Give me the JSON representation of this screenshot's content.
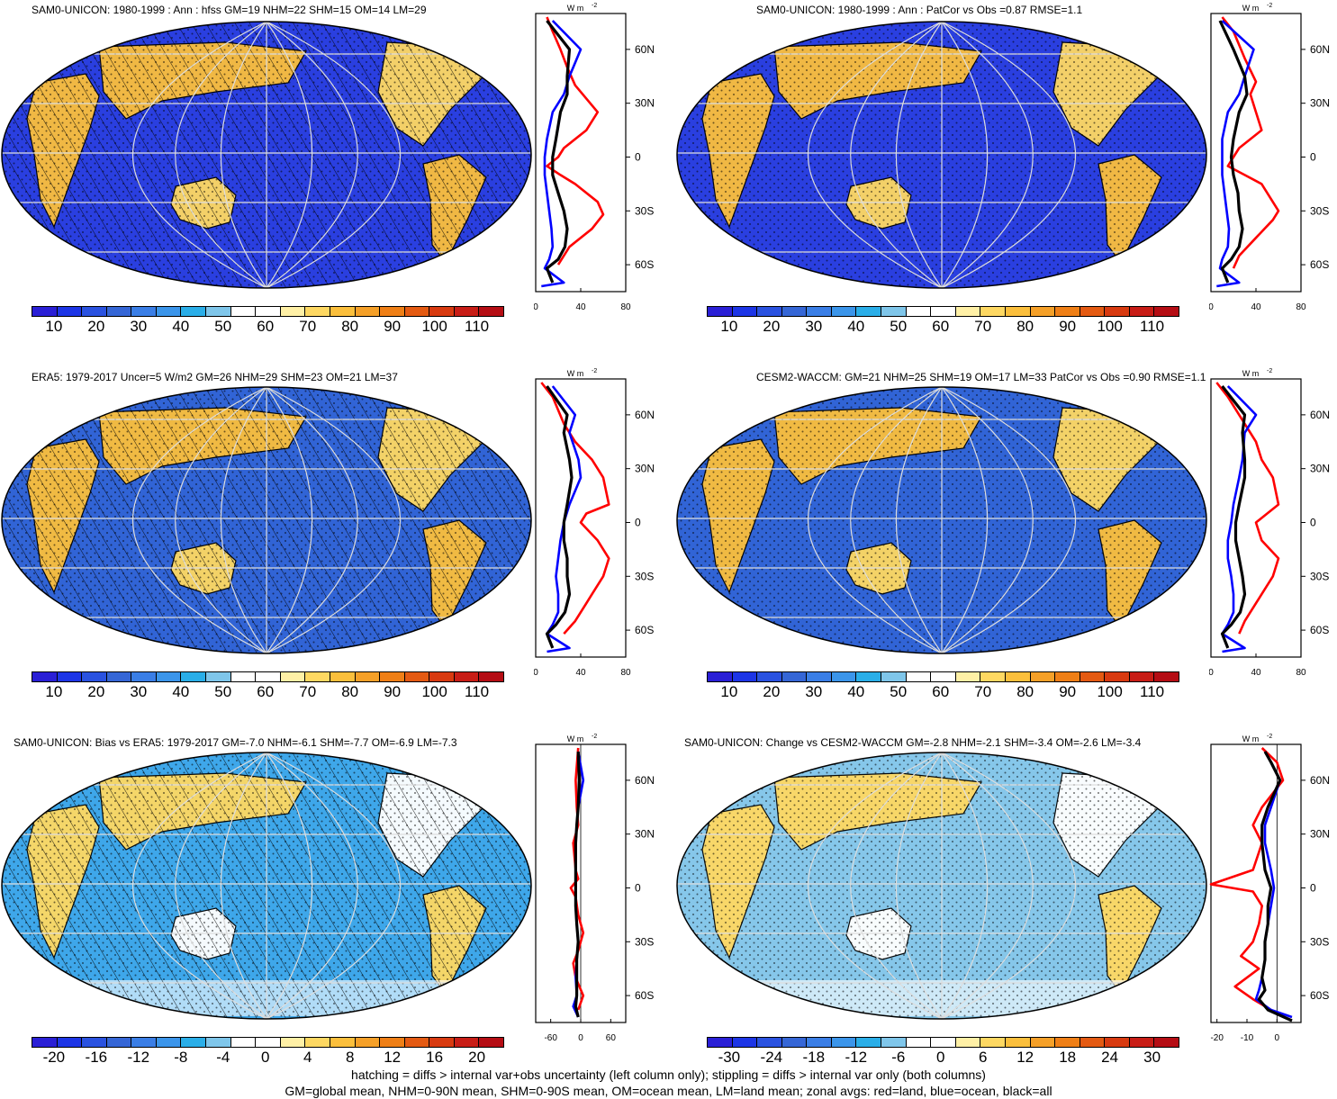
{
  "footer": {
    "line1": "hatching = diffs > internal var+obs uncertainty (left column only); stippling = diffs > internal var only (both columns)",
    "line2": "GM=global mean, NHM=0-90N mean, SHM=0-90S mean, OM=ocean mean, LM=land mean; zonal avgs: red=land, blue=ocean, black=all"
  },
  "colors": {
    "abs_scale": [
      "#2a1fd6",
      "#1d35e6",
      "#2a52e0",
      "#3566d6",
      "#3a7ee6",
      "#3b95ea",
      "#2aaee8",
      "#7fc6ea",
      "#ffffff",
      "#ffffff",
      "#fff0a6",
      "#fed862",
      "#fbbf3c",
      "#f5a028",
      "#ef7f16",
      "#e45a12",
      "#d83a10",
      "#c81d16",
      "#b50d14"
    ],
    "diff_scale": [
      "#2a1fd6",
      "#1d35e6",
      "#2a52e0",
      "#3566d6",
      "#3a7ee6",
      "#3b95ea",
      "#2aaee8",
      "#7fc6ea",
      "#ffffff",
      "#ffffff",
      "#fff0a6",
      "#fed862",
      "#fbbf3c",
      "#f5a028",
      "#ef7f16",
      "#e45a12",
      "#d83a10",
      "#c81d16",
      "#b50d14"
    ],
    "land": "#ff0000",
    "ocean": "#0000ff",
    "all": "#000000"
  },
  "panels": [
    {
      "title": "SAM0-UNICON: 1980-1999 : Ann : hfss GM=19 NHM=22 SHM=15 OM=14 LM=29",
      "map_base": "#2a3fe0",
      "hatched": true,
      "cbar_ticks": [
        "10",
        "20",
        "30",
        "40",
        "50",
        "60",
        "70",
        "80",
        "90",
        "100",
        "110"
      ],
      "zonal_unit": "W m",
      "zonal_unit_sup": "-2",
      "zonal_xticks": [
        "0",
        "40",
        "80"
      ],
      "zonal_lat": [
        "60N",
        "30N",
        "0",
        "30S",
        "60S"
      ]
    },
    {
      "title": "SAM0-UNICON: 1980-1999 : Ann : PatCor vs Obs =0.87 RMSE=1.1",
      "map_base": "#2a3fe0",
      "hatched": false,
      "cbar_ticks": [
        "10",
        "20",
        "30",
        "40",
        "50",
        "60",
        "70",
        "80",
        "90",
        "100",
        "110"
      ],
      "zonal_unit": "W m",
      "zonal_unit_sup": "-2",
      "zonal_xticks": [
        "0",
        "40",
        "80"
      ],
      "zonal_lat": [
        "60N",
        "30N",
        "0",
        "30S",
        "60S"
      ]
    },
    {
      "title": "ERA5: 1979-2017 Uncer=5 W/m2 GM=26 NHM=29 SHM=23 OM=21 LM=37",
      "map_base": "#3164d6",
      "hatched": true,
      "cbar_ticks": [
        "10",
        "20",
        "30",
        "40",
        "50",
        "60",
        "70",
        "80",
        "90",
        "100",
        "110"
      ],
      "zonal_unit": "W m",
      "zonal_unit_sup": "-2",
      "zonal_xticks": [
        "0",
        "40",
        "80"
      ],
      "zonal_lat": [
        "60N",
        "30N",
        "0",
        "30S",
        "60S"
      ]
    },
    {
      "title": "CESM2-WACCM: GM=21 NHM=25 SHM=19 OM=17 LM=33 PatCor vs Obs =0.90 RMSE=1.1",
      "map_base": "#3164d6",
      "hatched": false,
      "cbar_ticks": [
        "10",
        "20",
        "30",
        "40",
        "50",
        "60",
        "70",
        "80",
        "90",
        "100",
        "110"
      ],
      "zonal_unit": "W m",
      "zonal_unit_sup": "-2",
      "zonal_xticks": [
        "0",
        "40",
        "80"
      ],
      "zonal_lat": [
        "60N",
        "30N",
        "0",
        "30S",
        "60S"
      ]
    },
    {
      "title": "SAM0-UNICON: Bias vs ERA5: 1979-2017 GM=-7.0 NHM=-6.1 SHM=-7.7 OM=-6.9 LM=-7.3",
      "map_base": "#3ea7ea",
      "hatched": true,
      "cbar_ticks": [
        "-20",
        "-16",
        "-12",
        "-8",
        "-4",
        "0",
        "4",
        "8",
        "12",
        "16",
        "20"
      ],
      "zonal_unit": "W m",
      "zonal_unit_sup": "-2",
      "zonal_xticks": [
        "-60",
        "0",
        "60"
      ],
      "zonal_lat": [
        "60N",
        "30N",
        "0",
        "30S",
        "60S"
      ]
    },
    {
      "title": "SAM0-UNICON: Change vs CESM2-WACCM GM=-2.8 NHM=-2.1 SHM=-3.4 OM=-2.6 LM=-3.4",
      "map_base": "#86c7ea",
      "hatched": false,
      "cbar_ticks": [
        "-30",
        "-24",
        "-18",
        "-12",
        "-6",
        "0",
        "6",
        "12",
        "18",
        "24",
        "30"
      ],
      "zonal_unit": "W m",
      "zonal_unit_sup": "-2",
      "zonal_xticks": [
        "-20",
        "-10",
        "0"
      ],
      "zonal_lat": [
        "60N",
        "30N",
        "0",
        "30S",
        "60S"
      ]
    }
  ],
  "chart_data": [
    {
      "type": "line",
      "title": "SAM0-UNICON: 1980-1999 : Ann : hfss GM=19 NHM=22 SHM=15 OM=14 LM=29",
      "xlim": [
        0,
        80
      ],
      "ylim": [
        -75,
        80
      ],
      "series": [
        {
          "color": "red",
          "x": [
            10,
            15,
            22,
            28,
            35,
            55,
            45,
            25,
            20,
            10,
            22,
            35,
            55,
            60,
            50,
            30,
            20
          ],
          "y": [
            78,
            70,
            60,
            50,
            40,
            25,
            15,
            5,
            0,
            -5,
            -10,
            -15,
            -25,
            -32,
            -40,
            -50,
            -60
          ]
        },
        {
          "color": "blue",
          "x": [
            15,
            40,
            30,
            25,
            15,
            10,
            8,
            8,
            10,
            12,
            14,
            15,
            12,
            8,
            25,
            5
          ],
          "y": [
            76,
            60,
            45,
            35,
            25,
            10,
            0,
            -10,
            -20,
            -30,
            -40,
            -50,
            -57,
            -62,
            -70,
            -72
          ]
        },
        {
          "color": "black",
          "x": [
            10,
            30,
            28,
            28,
            22,
            18,
            15,
            15,
            20,
            25,
            28,
            26,
            20,
            10,
            15
          ],
          "y": [
            76,
            60,
            45,
            35,
            25,
            10,
            0,
            -10,
            -20,
            -30,
            -40,
            -50,
            -57,
            -62,
            -70
          ]
        }
      ]
    },
    {
      "type": "line",
      "title": "SAM0-UNICON: 1980-1999 : Ann : PatCor vs Obs =0.87 RMSE=1.1",
      "xlim": [
        0,
        80
      ],
      "ylim": [
        -75,
        80
      ],
      "series": [
        {
          "color": "red",
          "x": [
            10,
            20,
            30,
            40,
            35,
            40,
            45,
            25,
            20,
            15,
            30,
            45,
            60,
            55,
            40,
            25,
            20
          ],
          "y": [
            78,
            70,
            55,
            42,
            35,
            25,
            15,
            5,
            0,
            -5,
            -10,
            -15,
            -30,
            -35,
            -45,
            -55,
            -62
          ]
        },
        {
          "color": "blue",
          "x": [
            10,
            38,
            30,
            25,
            15,
            10,
            10,
            10,
            12,
            14,
            16,
            15,
            10,
            8,
            25,
            5
          ],
          "y": [
            76,
            60,
            45,
            35,
            25,
            10,
            0,
            -10,
            -20,
            -30,
            -40,
            -50,
            -57,
            -62,
            -70,
            -72
          ]
        },
        {
          "color": "black",
          "x": [
            8,
            20,
            30,
            32,
            25,
            20,
            18,
            20,
            24,
            25,
            28,
            25,
            18,
            10,
            15
          ],
          "y": [
            76,
            60,
            45,
            35,
            25,
            10,
            0,
            -10,
            -20,
            -30,
            -40,
            -50,
            -57,
            -62,
            -70
          ]
        }
      ]
    },
    {
      "type": "line",
      "title": "ERA5: 1979-2017 Uncer=5 W/m2 GM=26 NHM=29 SHM=23 OM=21 LM=37",
      "xlim": [
        0,
        80
      ],
      "ylim": [
        -75,
        80
      ],
      "series": [
        {
          "color": "red",
          "x": [
            5,
            15,
            25,
            35,
            50,
            60,
            65,
            45,
            40,
            55,
            65,
            60,
            50,
            45,
            35,
            25
          ],
          "y": [
            78,
            70,
            55,
            45,
            35,
            25,
            10,
            5,
            0,
            -10,
            -20,
            -30,
            -40,
            -45,
            -55,
            -62
          ]
        },
        {
          "color": "blue",
          "x": [
            15,
            35,
            30,
            38,
            40,
            30,
            25,
            22,
            20,
            18,
            20,
            20,
            15,
            10,
            30,
            10
          ],
          "y": [
            76,
            60,
            50,
            35,
            25,
            10,
            0,
            -10,
            -20,
            -30,
            -40,
            -50,
            -57,
            -62,
            -70,
            -72
          ]
        },
        {
          "color": "black",
          "x": [
            10,
            28,
            25,
            30,
            32,
            28,
            25,
            25,
            28,
            28,
            30,
            26,
            18,
            10,
            15
          ],
          "y": [
            76,
            60,
            50,
            35,
            25,
            10,
            0,
            -10,
            -20,
            -30,
            -40,
            -50,
            -57,
            -62,
            -70
          ]
        }
      ]
    },
    {
      "type": "line",
      "title": "CESM2-WACCM: GM=21 NHM=25 SHM=19 OM=17 LM=33 PatCor vs Obs =0.90 RMSE=1.1",
      "xlim": [
        0,
        80
      ],
      "ylim": [
        -75,
        80
      ],
      "series": [
        {
          "color": "red",
          "x": [
            5,
            15,
            30,
            40,
            45,
            55,
            60,
            50,
            40,
            45,
            60,
            55,
            45,
            40,
            30,
            25
          ],
          "y": [
            78,
            70,
            55,
            45,
            35,
            25,
            10,
            5,
            0,
            -10,
            -20,
            -30,
            -40,
            -45,
            -55,
            -62
          ]
        },
        {
          "color": "blue",
          "x": [
            15,
            40,
            30,
            28,
            25,
            20,
            18,
            15,
            15,
            18,
            20,
            20,
            15,
            10,
            30,
            10
          ],
          "y": [
            76,
            60,
            50,
            35,
            25,
            10,
            0,
            -10,
            -20,
            -30,
            -40,
            -50,
            -57,
            -62,
            -70,
            -72
          ]
        },
        {
          "color": "black",
          "x": [
            10,
            30,
            28,
            30,
            30,
            25,
            22,
            22,
            25,
            28,
            30,
            26,
            18,
            10,
            15
          ],
          "y": [
            76,
            60,
            50,
            35,
            25,
            10,
            0,
            -10,
            -20,
            -30,
            -40,
            -50,
            -57,
            -62,
            -70
          ]
        }
      ]
    },
    {
      "type": "line",
      "title": "SAM0-UNICON: Bias vs ERA5: 1979-2017 GM=-7.0 NHM=-6.1 SHM=-7.7 OM=-6.9 LM=-7.3",
      "xlim": [
        -90,
        90
      ],
      "ylim": [
        -75,
        80
      ],
      "series": [
        {
          "color": "red",
          "x": [
            -5,
            -10,
            -8,
            -5,
            -15,
            -10,
            -5,
            -20,
            -10,
            -5,
            5,
            -5,
            -15,
            -10,
            5,
            -5
          ],
          "y": [
            78,
            60,
            45,
            35,
            25,
            10,
            5,
            0,
            -5,
            -15,
            -25,
            -35,
            -42,
            -50,
            -60,
            -68
          ]
        },
        {
          "color": "blue",
          "x": [
            -5,
            5,
            -5,
            -8,
            -10,
            -10,
            -10,
            -10,
            -8,
            -5,
            -8,
            -10,
            -8,
            -15,
            -5
          ],
          "y": [
            76,
            60,
            45,
            35,
            25,
            10,
            0,
            -10,
            -20,
            -30,
            -40,
            -50,
            -60,
            -66,
            -72
          ]
        },
        {
          "color": "black",
          "x": [
            -5,
            -3,
            -5,
            -8,
            -10,
            -10,
            -10,
            -10,
            -8,
            -5,
            -8,
            -8,
            -8,
            -10,
            -5
          ],
          "y": [
            76,
            60,
            45,
            35,
            25,
            10,
            0,
            -10,
            -20,
            -30,
            -40,
            -50,
            -60,
            -66,
            -72
          ]
        }
      ]
    },
    {
      "type": "line",
      "title": "SAM0-UNICON: Change vs CESM2-WACCM GM=-2.8 NHM=-2.1 SHM=-3.4 OM=-2.6 LM=-3.4",
      "xlim": [
        -22,
        8
      ],
      "ylim": [
        -75,
        80
      ],
      "series": [
        {
          "color": "red",
          "x": [
            -5,
            0,
            2,
            -5,
            -8,
            -5,
            -8,
            -22,
            -8,
            -5,
            -6,
            -8,
            -12,
            -6,
            -14,
            -8,
            -2
          ],
          "y": [
            78,
            70,
            60,
            45,
            35,
            25,
            10,
            2,
            -2,
            -10,
            -20,
            -30,
            -38,
            -45,
            -55,
            -62,
            -68
          ]
        },
        {
          "color": "blue",
          "x": [
            -4,
            -2,
            1,
            -2,
            -4,
            -4,
            -2,
            -1,
            -2,
            -3,
            -4,
            -4,
            -5,
            -6,
            -7,
            -2,
            5
          ],
          "y": [
            76,
            70,
            60,
            45,
            35,
            25,
            10,
            0,
            -10,
            -20,
            -30,
            -40,
            -50,
            -57,
            -62,
            -68,
            -72
          ]
        },
        {
          "color": "black",
          "x": [
            -4,
            -2,
            1,
            -3,
            -5,
            -5,
            -4,
            -2,
            -3,
            -3,
            -4,
            -4,
            -5,
            -4,
            -6,
            -3,
            5
          ],
          "y": [
            76,
            70,
            60,
            45,
            35,
            25,
            10,
            0,
            -10,
            -20,
            -30,
            -40,
            -50,
            -57,
            -62,
            -68,
            -74
          ]
        }
      ]
    }
  ]
}
